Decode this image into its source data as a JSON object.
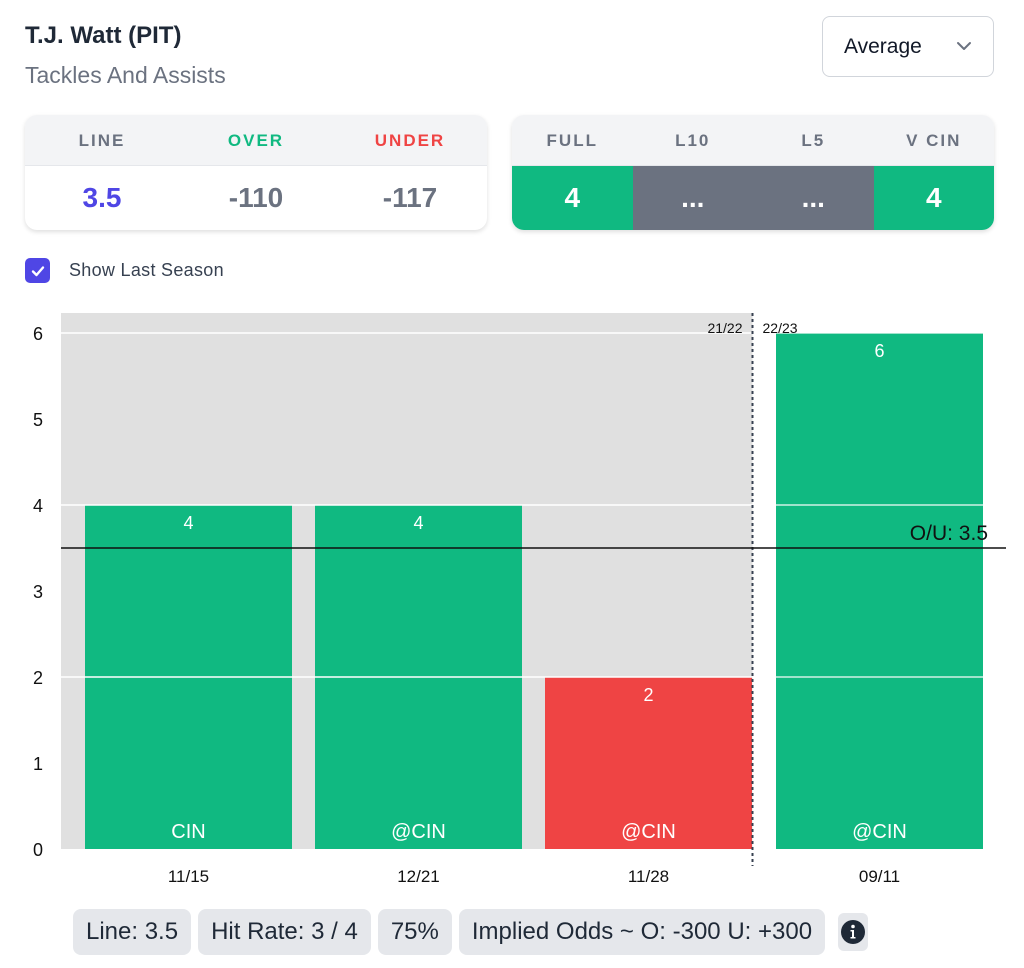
{
  "header": {
    "title": "T.J. Watt (PIT)",
    "subtitle": "Tackles And Assists"
  },
  "dropdown": {
    "selected": "Average",
    "icon": "chevron-down-icon"
  },
  "line_card": {
    "headers": [
      "LINE",
      "OVER",
      "UNDER"
    ],
    "values": [
      "3.5",
      "-110",
      "-117"
    ]
  },
  "avg_card": {
    "headers": [
      "FULL",
      "L10",
      "L5",
      "V CIN"
    ],
    "values": [
      "4",
      "...",
      "...",
      "4"
    ],
    "states": [
      "hit",
      "pending",
      "pending",
      "hit"
    ]
  },
  "show_last_season": {
    "label": "Show Last Season",
    "checked": true
  },
  "colors": {
    "green": "#10b981",
    "red": "#ef4444",
    "gray": "#6b7280",
    "purple": "#4f46e5",
    "chart_bg": "#e0e0e0"
  },
  "chart_data": {
    "type": "bar",
    "categories": [
      "11/15",
      "12/21",
      "11/28",
      "09/11"
    ],
    "opponents": [
      "CIN",
      "@CIN",
      "@CIN",
      "@CIN"
    ],
    "values": [
      4,
      4,
      2,
      6
    ],
    "results": [
      "over",
      "over",
      "under",
      "over"
    ],
    "seasons": [
      "21/22",
      "21/22",
      "21/22",
      "22/23"
    ],
    "season_labels": [
      "21/22",
      "22/23"
    ],
    "ylim": [
      0,
      6
    ],
    "yticks": [
      0,
      1,
      2,
      3,
      4,
      5,
      6
    ],
    "line": 3.5,
    "line_label": "O/U: 3.5",
    "grid": true,
    "title": "",
    "xlabel": "",
    "ylabel": ""
  },
  "summary": {
    "line": "Line: 3.5",
    "hit_rate": "Hit Rate: 3 / 4",
    "percent": "75%",
    "implied_odds": "Implied Odds ~ O: -300 U: +300",
    "info_icon": "info-icon"
  }
}
